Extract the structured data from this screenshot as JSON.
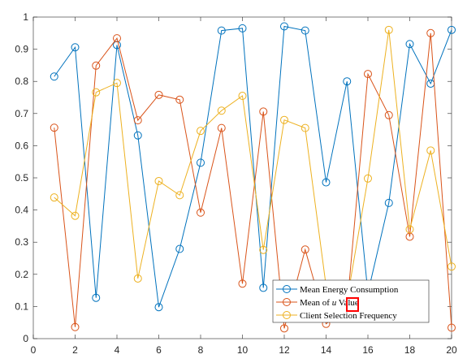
{
  "chart_data": {
    "type": "line",
    "x": [
      1,
      2,
      3,
      4,
      5,
      6,
      7,
      8,
      9,
      10,
      11,
      12,
      13,
      14,
      15,
      16,
      17,
      18,
      19,
      20
    ],
    "xlim": [
      0,
      20
    ],
    "ylim": [
      0,
      1
    ],
    "xticks": [
      0,
      2,
      4,
      6,
      8,
      10,
      12,
      14,
      16,
      18,
      20
    ],
    "yticks": [
      0,
      0.1,
      0.2,
      0.3,
      0.4,
      0.5,
      0.6,
      0.7,
      0.8,
      0.9,
      1
    ],
    "xtick_labels": [
      "0",
      "2",
      "4",
      "6",
      "8",
      "10",
      "12",
      "14",
      "16",
      "18",
      "20"
    ],
    "ytick_labels": [
      "0",
      "0.1",
      "0.2",
      "0.3",
      "0.4",
      "0.5",
      "0.6",
      "0.7",
      "0.8",
      "0.9",
      "1"
    ],
    "grid": false,
    "legend_position": "bottom-right",
    "series": [
      {
        "name": "Mean Energy Consumption",
        "color": "#0072BD",
        "values": [
          0.815,
          0.906,
          0.127,
          0.913,
          0.632,
          0.098,
          0.279,
          0.547,
          0.958,
          0.965,
          0.158,
          0.971,
          0.958,
          0.486,
          0.8,
          0.142,
          0.422,
          0.916,
          0.793,
          0.96
        ]
      },
      {
        "name": "Mean of ",
        "name_symbol": "u",
        "name_suffix": " Value",
        "color": "#D95319",
        "values": [
          0.656,
          0.036,
          0.849,
          0.934,
          0.679,
          0.758,
          0.743,
          0.392,
          0.655,
          0.171,
          0.706,
          0.032,
          0.277,
          0.046,
          0.097,
          0.823,
          0.695,
          0.317,
          0.95,
          0.034
        ]
      },
      {
        "name": "Client Selection Frequency",
        "color": "#EDB120",
        "values": [
          0.439,
          0.382,
          0.766,
          0.795,
          0.187,
          0.49,
          0.446,
          0.646,
          0.709,
          0.755,
          0.276,
          0.68,
          0.655,
          0.163,
          0.119,
          0.498,
          0.96,
          0.34,
          0.585,
          0.224
        ]
      }
    ]
  }
}
